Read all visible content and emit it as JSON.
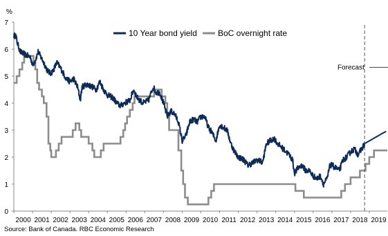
{
  "chart_data": {
    "type": "line",
    "unit_label": "%",
    "xlim": [
      2000,
      2020
    ],
    "ylim": [
      0,
      7
    ],
    "x_ticks": [
      "2000",
      "2001",
      "2002",
      "2003",
      "2004",
      "2005",
      "2006",
      "2007",
      "2008",
      "2009",
      "2010",
      "2011",
      "2012",
      "2013",
      "2014",
      "2015",
      "2016",
      "2017",
      "2018",
      "2019"
    ],
    "y_ticks": [
      "0",
      "1",
      "2",
      "3",
      "4",
      "5",
      "6",
      "7"
    ],
    "legend": {
      "placement": "top-center"
    },
    "series": [
      {
        "name": "10 Year bond yield",
        "color": "#0d2b57",
        "style": "noisy-line",
        "points": [
          [
            2000.0,
            6.5
          ],
          [
            2000.1,
            6.5
          ],
          [
            2000.2,
            6.2
          ],
          [
            2000.35,
            5.9
          ],
          [
            2000.6,
            5.8
          ],
          [
            2000.9,
            5.7
          ],
          [
            2001.0,
            5.4
          ],
          [
            2001.15,
            5.6
          ],
          [
            2001.3,
            5.9
          ],
          [
            2001.45,
            5.7
          ],
          [
            2001.6,
            5.5
          ],
          [
            2001.8,
            5.2
          ],
          [
            2001.95,
            5.1
          ],
          [
            2002.1,
            5.2
          ],
          [
            2002.3,
            5.5
          ],
          [
            2002.5,
            5.3
          ],
          [
            2002.8,
            4.9
          ],
          [
            2003.0,
            4.8
          ],
          [
            2003.2,
            4.9
          ],
          [
            2003.4,
            4.6
          ],
          [
            2003.5,
            4.3
          ],
          [
            2003.55,
            4.1
          ],
          [
            2003.65,
            4.6
          ],
          [
            2003.9,
            4.7
          ],
          [
            2004.2,
            4.6
          ],
          [
            2004.4,
            4.5
          ],
          [
            2004.6,
            4.8
          ],
          [
            2004.8,
            4.5
          ],
          [
            2005.0,
            4.3
          ],
          [
            2005.3,
            4.2
          ],
          [
            2005.5,
            4.0
          ],
          [
            2005.7,
            3.9
          ],
          [
            2005.9,
            4.0
          ],
          [
            2006.2,
            4.1
          ],
          [
            2006.4,
            4.5
          ],
          [
            2006.6,
            4.2
          ],
          [
            2006.9,
            4.0
          ],
          [
            2007.2,
            4.1
          ],
          [
            2007.45,
            4.6
          ],
          [
            2007.6,
            4.4
          ],
          [
            2007.8,
            4.4
          ],
          [
            2008.0,
            4.0
          ],
          [
            2008.2,
            3.5
          ],
          [
            2008.4,
            3.7
          ],
          [
            2008.6,
            3.6
          ],
          [
            2008.8,
            3.3
          ],
          [
            2009.0,
            2.6
          ],
          [
            2009.2,
            2.8
          ],
          [
            2009.4,
            3.3
          ],
          [
            2009.6,
            3.4
          ],
          [
            2009.8,
            3.3
          ],
          [
            2010.0,
            3.5
          ],
          [
            2010.2,
            3.5
          ],
          [
            2010.4,
            3.1
          ],
          [
            2010.6,
            2.9
          ],
          [
            2010.8,
            2.6
          ],
          [
            2011.0,
            3.2
          ],
          [
            2011.2,
            3.1
          ],
          [
            2011.4,
            3.0
          ],
          [
            2011.6,
            2.5
          ],
          [
            2011.8,
            2.2
          ],
          [
            2012.0,
            2.0
          ],
          [
            2012.3,
            1.9
          ],
          [
            2012.5,
            1.7
          ],
          [
            2012.8,
            1.8
          ],
          [
            2013.0,
            1.9
          ],
          [
            2013.3,
            1.8
          ],
          [
            2013.5,
            2.5
          ],
          [
            2013.7,
            2.6
          ],
          [
            2013.9,
            2.7
          ],
          [
            2014.1,
            2.5
          ],
          [
            2014.4,
            2.3
          ],
          [
            2014.7,
            2.1
          ],
          [
            2014.9,
            1.9
          ],
          [
            2015.0,
            1.4
          ],
          [
            2015.2,
            1.6
          ],
          [
            2015.4,
            1.7
          ],
          [
            2015.6,
            1.5
          ],
          [
            2015.8,
            1.5
          ],
          [
            2016.0,
            1.3
          ],
          [
            2016.2,
            1.2
          ],
          [
            2016.4,
            1.3
          ],
          [
            2016.55,
            1.0
          ],
          [
            2016.75,
            1.2
          ],
          [
            2016.9,
            1.7
          ],
          [
            2017.0,
            1.7
          ],
          [
            2017.2,
            1.6
          ],
          [
            2017.4,
            1.5
          ],
          [
            2017.6,
            1.9
          ],
          [
            2017.8,
            2.0
          ],
          [
            2018.0,
            2.2
          ],
          [
            2018.2,
            2.3
          ],
          [
            2018.4,
            2.1
          ],
          [
            2018.6,
            2.3
          ],
          [
            2018.75,
            2.5
          ],
          [
            2019.0,
            2.6
          ],
          [
            2019.25,
            2.7
          ],
          [
            2019.5,
            2.8
          ],
          [
            2019.75,
            2.9
          ],
          [
            2019.9,
            2.95
          ]
        ]
      },
      {
        "name": "BoC overnight rate",
        "color": "#8c8c8c",
        "style": "step",
        "points": [
          [
            2000.0,
            4.75
          ],
          [
            2000.15,
            5.0
          ],
          [
            2000.3,
            5.25
          ],
          [
            2000.45,
            5.5
          ],
          [
            2000.55,
            5.75
          ],
          [
            2001.05,
            5.5
          ],
          [
            2001.15,
            5.25
          ],
          [
            2001.25,
            4.75
          ],
          [
            2001.35,
            4.5
          ],
          [
            2001.5,
            4.25
          ],
          [
            2001.6,
            4.0
          ],
          [
            2001.75,
            3.5
          ],
          [
            2001.85,
            2.5
          ],
          [
            2001.95,
            2.25
          ],
          [
            2002.0,
            2.0
          ],
          [
            2002.25,
            2.25
          ],
          [
            2002.4,
            2.5
          ],
          [
            2002.55,
            2.75
          ],
          [
            2003.15,
            3.0
          ],
          [
            2003.3,
            3.25
          ],
          [
            2003.5,
            3.0
          ],
          [
            2003.6,
            2.75
          ],
          [
            2004.0,
            2.5
          ],
          [
            2004.2,
            2.25
          ],
          [
            2004.3,
            2.0
          ],
          [
            2004.65,
            2.25
          ],
          [
            2004.8,
            2.5
          ],
          [
            2005.7,
            2.75
          ],
          [
            2005.85,
            3.0
          ],
          [
            2005.95,
            3.25
          ],
          [
            2006.05,
            3.5
          ],
          [
            2006.2,
            3.75
          ],
          [
            2006.35,
            4.0
          ],
          [
            2006.45,
            4.25
          ],
          [
            2007.5,
            4.5
          ],
          [
            2007.9,
            4.25
          ],
          [
            2008.1,
            4.0
          ],
          [
            2008.2,
            3.5
          ],
          [
            2008.3,
            3.0
          ],
          [
            2008.8,
            2.25
          ],
          [
            2008.95,
            1.5
          ],
          [
            2009.05,
            1.0
          ],
          [
            2009.15,
            0.5
          ],
          [
            2009.3,
            0.25
          ],
          [
            2010.4,
            0.5
          ],
          [
            2010.55,
            0.75
          ],
          [
            2010.7,
            1.0
          ],
          [
            2015.05,
            0.75
          ],
          [
            2015.5,
            0.5
          ],
          [
            2017.5,
            0.75
          ],
          [
            2017.7,
            1.0
          ],
          [
            2018.0,
            1.25
          ],
          [
            2018.5,
            1.5
          ],
          [
            2018.8,
            1.75
          ],
          [
            2019.0,
            2.0
          ],
          [
            2019.25,
            2.25
          ]
        ]
      }
    ],
    "annotations": [
      {
        "type": "vline",
        "x": 2018.75,
        "style": "dashed"
      },
      {
        "type": "label",
        "text": "Forecast",
        "x": 2017.3,
        "y": 5.25,
        "arrow": "right"
      }
    ],
    "source": "Source:  Bank of Canada. RBC Economic Research"
  }
}
